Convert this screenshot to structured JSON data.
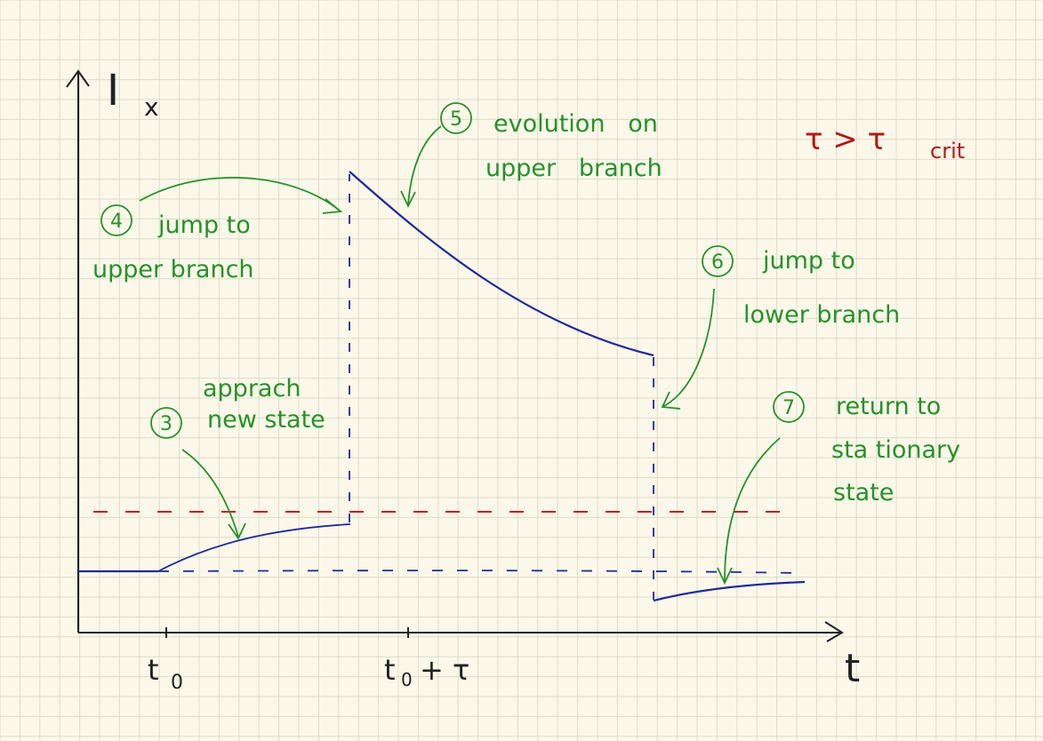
{
  "axes": {
    "y_label_main": "I",
    "y_label_sub": "x",
    "x_label": "t",
    "tick_t0_main": "t",
    "tick_t0_sub": "0",
    "tick_ttau_main": "t",
    "tick_ttau_sub": "0",
    "tick_ttau_rest": "+ τ"
  },
  "condition": {
    "main": "τ > τ",
    "sub": "crit"
  },
  "annotations": [
    {
      "num": "3",
      "line1": "apprach",
      "line2": "new state"
    },
    {
      "num": "4",
      "line1": "jump to",
      "line2": "upper branch"
    },
    {
      "num": "5",
      "line1": "evolution   on",
      "line2": "upper   branch"
    },
    {
      "num": "6",
      "line1": "jump to",
      "line2": "lower branch"
    },
    {
      "num": "7",
      "line1": "return to",
      "line2": "sta tionary",
      "line3": "state"
    }
  ],
  "colors": {
    "background": "#fbf8ea",
    "grid": "#dcdcc8",
    "curve": "#1f2a9c",
    "threshold": "#c41e1e",
    "annotation": "#27912a",
    "condition": "#b01a1a",
    "axis": "#222222"
  }
}
